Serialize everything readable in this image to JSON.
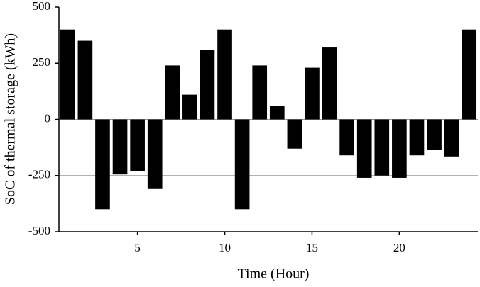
{
  "chart_data": {
    "type": "bar",
    "x_label": "Time (Hour)",
    "y_label": "SoC of thermal storage (kWh)",
    "x": [
      1,
      2,
      3,
      4,
      5,
      6,
      7,
      8,
      9,
      10,
      11,
      12,
      13,
      14,
      15,
      16,
      17,
      18,
      19,
      20,
      21,
      22,
      23,
      24
    ],
    "values": [
      400,
      350,
      -400,
      -245,
      -230,
      -310,
      240,
      110,
      310,
      400,
      -400,
      240,
      60,
      -130,
      230,
      320,
      -160,
      -260,
      -250,
      -260,
      -160,
      -135,
      -165,
      400
    ],
    "color": "#000000",
    "xlim": [
      0.5,
      24.5
    ],
    "xticks": [
      5,
      10,
      15,
      20
    ],
    "ylim": [
      -500,
      500
    ],
    "yticks": [
      -500,
      -250,
      0,
      250,
      500
    ],
    "reference_lines": [
      0,
      -250
    ]
  }
}
